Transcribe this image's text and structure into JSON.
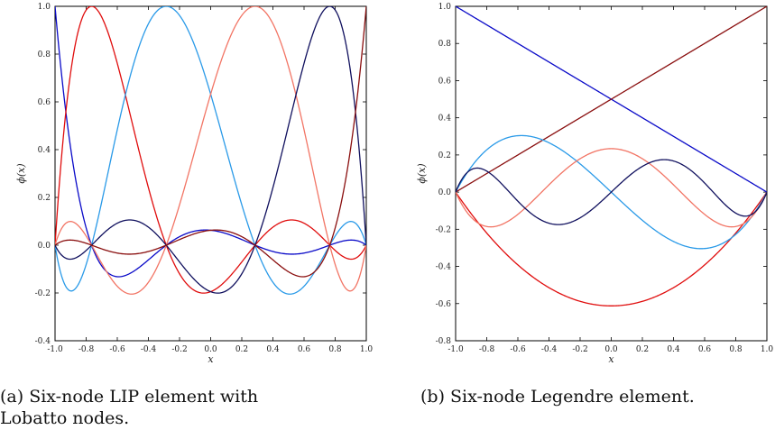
{
  "captions": {
    "a": "(a) Six-node LIP element with Lobatto nodes.",
    "b": "(b) Six-node Legendre element."
  },
  "chart_data": [
    {
      "type": "line",
      "xlabel": "x",
      "ylabel": "ϕ(x)",
      "xlim": [
        -1,
        1
      ],
      "ylim": [
        -0.4,
        1
      ],
      "x_ticks": [
        "-1.0",
        "-0.8",
        "-0.6",
        "-0.4",
        "-0.2",
        "0.0",
        "0.2",
        "0.4",
        "0.6",
        "0.8",
        "1.0"
      ],
      "y_ticks": [
        "-0.4",
        "-0.2",
        "0.0",
        "0.2",
        "0.4",
        "0.6",
        "0.8",
        "1.0"
      ],
      "grid": false,
      "lobatto_nodes": [
        -1,
        -0.76505532,
        -0.28523152,
        0.28523152,
        0.76505532,
        1
      ],
      "series": [
        {
          "color": "#0a0ac8",
          "values_at_nodes": [
            1,
            0,
            0,
            0,
            0,
            0
          ]
        },
        {
          "color": "#e00d0d",
          "values_at_nodes": [
            0,
            1,
            0,
            0,
            0,
            0
          ]
        },
        {
          "color": "#2a9ae8",
          "values_at_nodes": [
            0,
            0,
            1,
            0,
            0,
            0
          ]
        },
        {
          "color": "#f27565",
          "values_at_nodes": [
            0,
            0,
            0,
            1,
            0,
            0
          ]
        },
        {
          "color": "#10105e",
          "values_at_nodes": [
            0,
            0,
            0,
            0,
            1,
            0
          ]
        },
        {
          "color": "#8a0f0f",
          "values_at_nodes": [
            0,
            0,
            0,
            0,
            0,
            1
          ]
        }
      ]
    },
    {
      "type": "line",
      "xlabel": "x",
      "ylabel": "ϕ(x)",
      "xlim": [
        -1,
        1
      ],
      "ylim": [
        -0.8,
        1
      ],
      "x_ticks": [
        "-1.0",
        "-0.8",
        "-0.6",
        "-0.4",
        "-0.2",
        "0.0",
        "0.2",
        "0.4",
        "0.6",
        "0.8",
        "1.0"
      ],
      "y_ticks": [
        "-0.8",
        "-0.6",
        "-0.4",
        "-0.2",
        "0.0",
        "0.2",
        "0.4",
        "0.6",
        "0.8",
        "1.0"
      ],
      "grid": false,
      "series": [
        {
          "color": "#0a0ac8",
          "basis": "(1-x)/2",
          "values": [
            [
              -1,
              1
            ],
            [
              1,
              0
            ]
          ]
        },
        {
          "color": "#8a0f0f",
          "basis": "(1+x)/2",
          "values": [
            [
              -1,
              0
            ],
            [
              1,
              1
            ]
          ]
        },
        {
          "color": "#e00d0d",
          "basis": "phi2",
          "min": [
            0,
            -0.612
          ]
        },
        {
          "color": "#2a9ae8",
          "basis": "phi3",
          "extrema": [
            [
              -0.577,
              0.306
            ],
            [
              0.577,
              -0.306
            ]
          ]
        },
        {
          "color": "#f27565",
          "basis": "phi4",
          "extrema": [
            [
              -0.775,
              -0.185
            ],
            [
              0,
              0.234
            ],
            [
              0.775,
              -0.185
            ]
          ]
        },
        {
          "color": "#10105e",
          "basis": "phi5",
          "extrema": [
            [
              -0.862,
              0.129
            ],
            [
              -0.34,
              -0.172
            ],
            [
              0.34,
              0.172
            ],
            [
              0.862,
              -0.129
            ]
          ]
        }
      ]
    }
  ]
}
